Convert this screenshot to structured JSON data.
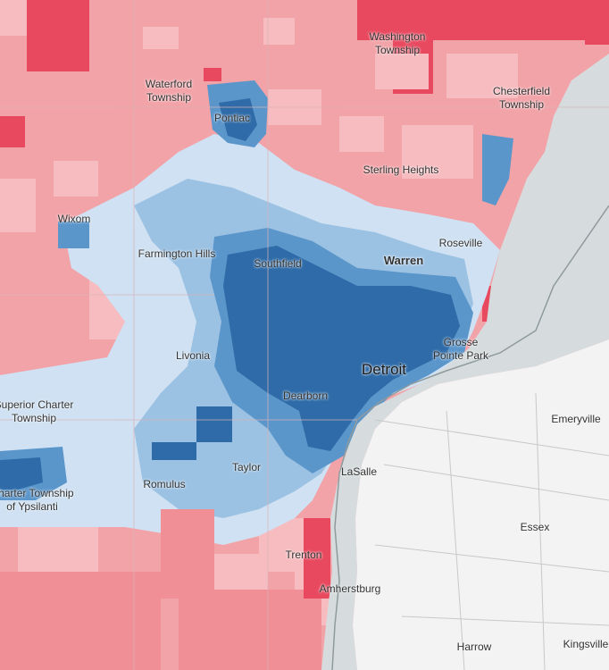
{
  "map": {
    "colors": {
      "strong_rep": "#e8495f",
      "rep": "#f08f96",
      "lean_rep": "#f7bcc0",
      "light_dem": "#cfe1f2",
      "lean_dem": "#9cc2e3",
      "dem": "#5b96cb",
      "strong_dem": "#2e6ba8",
      "water": "#d6dcdd",
      "canada": "#f3f3f3",
      "border": "#8f9a9c"
    },
    "labels": {
      "washington": "Washington\nTownship",
      "waterford": "Waterford\nTownship",
      "pontiac": "Pontiac",
      "chesterfield": "Chesterfield\nTownship",
      "sterling_heights": "Sterling Heights",
      "wixom": "Wixom",
      "farmington_hills": "Farmington Hills",
      "southfield": "Southfield",
      "warren": "Warren",
      "roseville": "Roseville",
      "livonia": "Livonia",
      "grosse_pointe": "Grosse\nPointe Park",
      "detroit": "Detroit",
      "superior": "Superior Charter\nTownship",
      "dearborn": "Dearborn",
      "emeryville": "Emeryville",
      "taylor": "Taylor",
      "lasalle": "LaSalle",
      "romulus": "Romulus",
      "ypsilanti": "Charter Township\nof Ypsilanti",
      "essex": "Essex",
      "trenton": "Trenton",
      "amherstburg": "Amherstburg",
      "harrow": "Harrow",
      "kingsville": "Kingsville"
    }
  }
}
